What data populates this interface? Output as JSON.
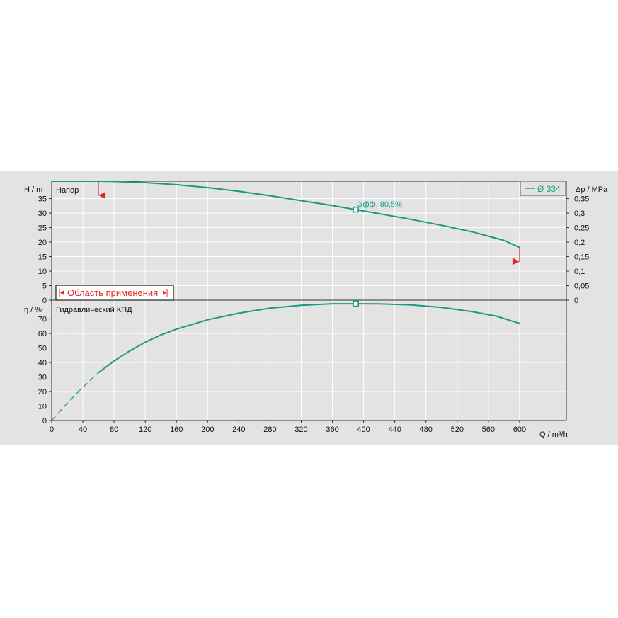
{
  "colors": {
    "curve": "#1a9a85",
    "marker": "#e82020",
    "plot_bg": "#e3e3e3",
    "grid": "#ffffff"
  },
  "legend": {
    "label": "Ø 334"
  },
  "application_range": {
    "label": "Область применения"
  },
  "chart_data": [
    {
      "type": "line",
      "title": "Напор",
      "ylabel_left": "H / m",
      "ylabel_right": "Δp / MPa",
      "ylim": [
        0,
        41
      ],
      "yticks": [
        0,
        5,
        10,
        15,
        20,
        25,
        30,
        35
      ],
      "yticks_right": [
        {
          "value": 0,
          "label": "0"
        },
        {
          "value": 5,
          "label": "0,05"
        },
        {
          "value": 10,
          "label": "0,1"
        },
        {
          "value": 15,
          "label": "0,15"
        },
        {
          "value": 20,
          "label": "0,2"
        },
        {
          "value": 25,
          "label": "0,25"
        },
        {
          "value": 30,
          "label": "0,3"
        },
        {
          "value": 35,
          "label": "0,35"
        }
      ],
      "series": [
        {
          "name": "Ø 334",
          "x": [
            0,
            60,
            80,
            120,
            160,
            200,
            240,
            280,
            320,
            360,
            390,
            420,
            460,
            500,
            540,
            580,
            600
          ],
          "y": [
            41.0,
            41.0,
            40.9,
            40.5,
            39.8,
            38.8,
            37.5,
            36.0,
            34.3,
            32.6,
            31.2,
            29.8,
            27.9,
            25.8,
            23.5,
            20.6,
            18.2
          ]
        }
      ],
      "annotations": [
        {
          "text": "Эфф.  80,5%",
          "x": 390,
          "y": 31.2
        }
      ],
      "grid": true
    },
    {
      "type": "line",
      "title": "Гидравлический КПД",
      "ylabel_left": "η / %",
      "ylim": [
        0,
        83
      ],
      "yticks": [
        0,
        10,
        20,
        30,
        40,
        50,
        60,
        70
      ],
      "series": [
        {
          "name": "Ø 334",
          "x": [
            0,
            20,
            40,
            60,
            80,
            100,
            120,
            140,
            160,
            200,
            240,
            280,
            320,
            360,
            390,
            420,
            460,
            500,
            540,
            570,
            600
          ],
          "y": [
            0,
            12,
            23,
            33,
            41,
            48,
            54,
            59,
            63,
            69.5,
            74,
            77.5,
            79.5,
            80.5,
            80.5,
            80.4,
            79.8,
            78,
            75,
            72,
            67
          ]
        }
      ],
      "grid": true
    }
  ],
  "x_axis": {
    "label": "Q / m³/h",
    "xlim": [
      0,
      660
    ],
    "ticks": [
      0,
      40,
      80,
      120,
      160,
      200,
      240,
      280,
      320,
      360,
      400,
      440,
      480,
      520,
      560,
      600
    ]
  }
}
